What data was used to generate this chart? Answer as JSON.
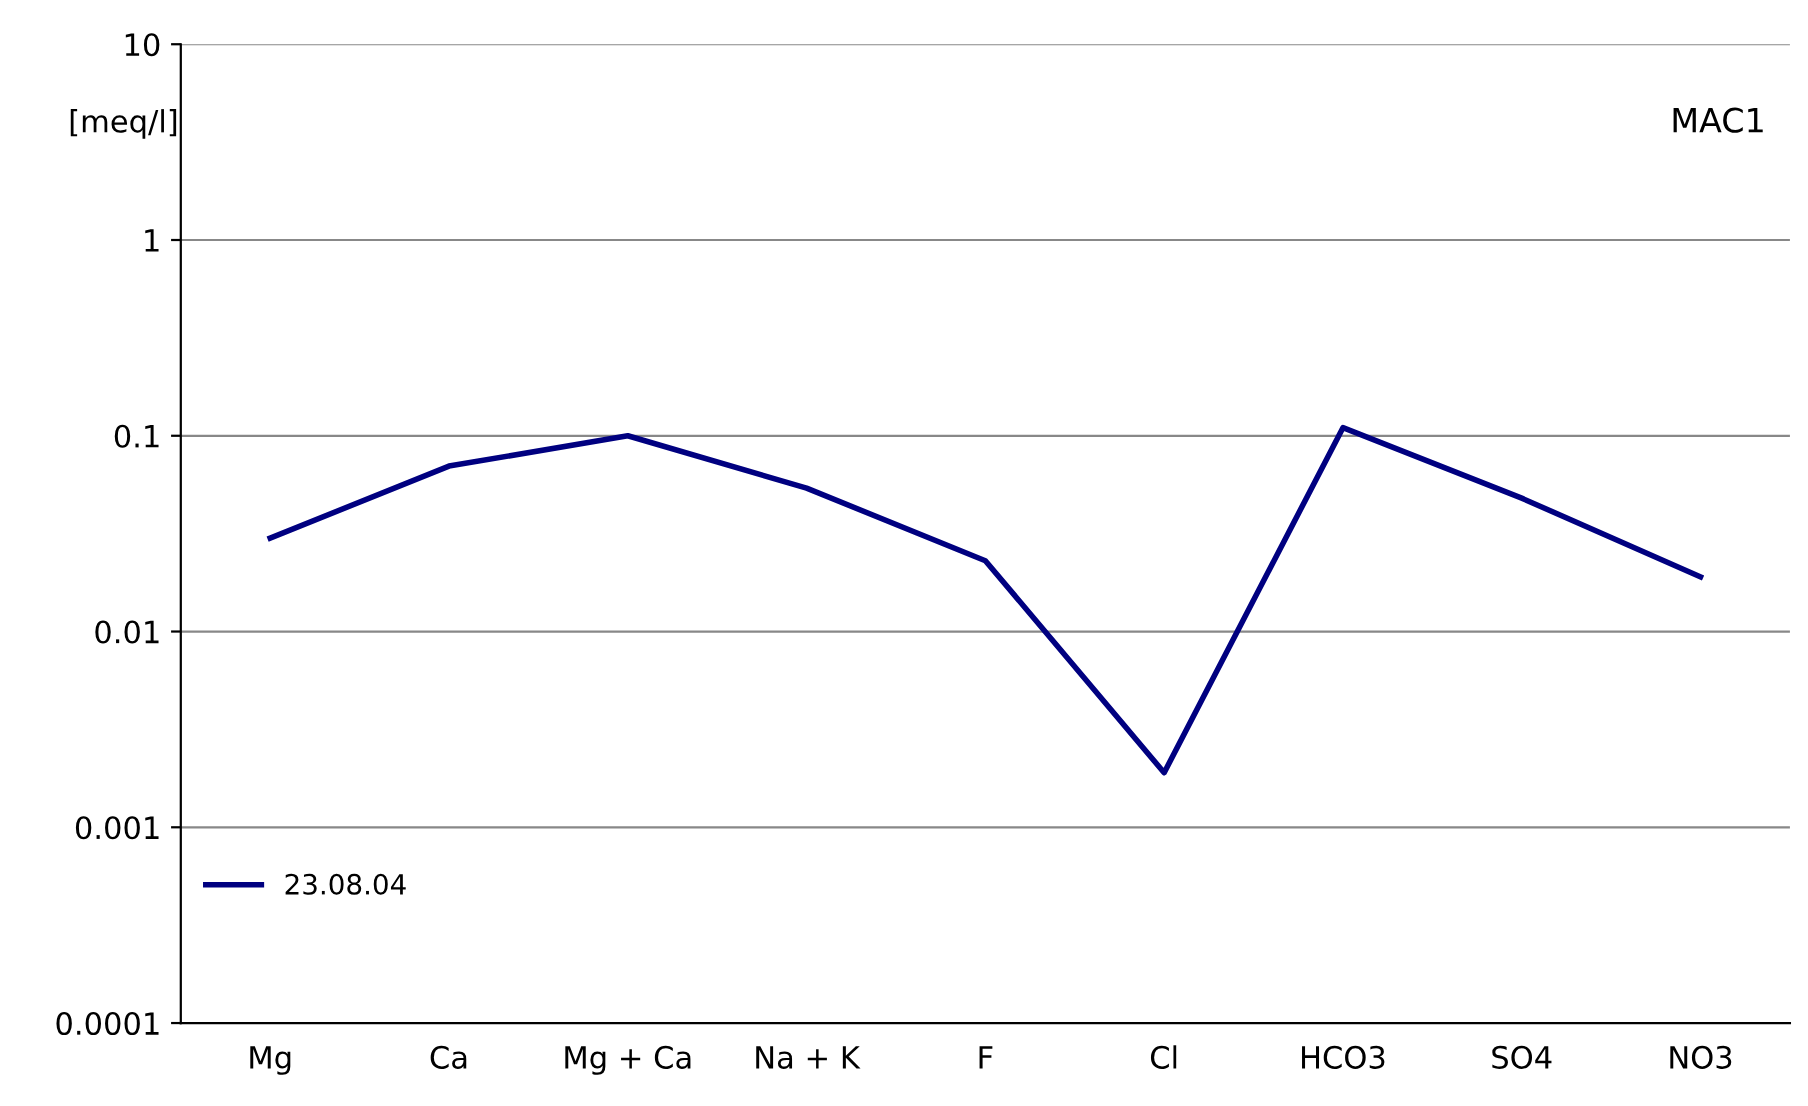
{
  "chart_data": {
    "type": "line",
    "ylabel": "[meq/l]",
    "annotations": [
      "MAC1"
    ],
    "categories": [
      "Mg",
      "Ca",
      "Mg + Ca",
      "Na + K",
      "F",
      "Cl",
      "HCO3",
      "SO4",
      "NO3"
    ],
    "series": [
      {
        "name": "23.08.04",
        "color": "#000080",
        "values": [
          0.03,
          0.07,
          0.1,
          0.054,
          0.023,
          0.0019,
          0.11,
          0.048,
          0.019
        ]
      }
    ],
    "log": true,
    "ylim": [
      0.0001,
      10
    ],
    "yticks": [
      0.0001,
      0.001,
      0.01,
      0.1,
      1,
      10
    ],
    "grid": "y",
    "legend": "bottom left",
    "marker": "none",
    "line_style": "solid"
  }
}
